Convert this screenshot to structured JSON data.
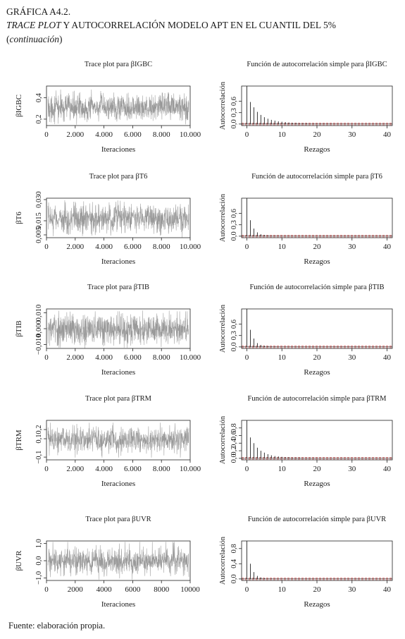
{
  "header": {
    "line1": "GRÁFICA A4.2.",
    "line2_italic": "TRACE PLOT",
    "line2_rest": " Y AUTOCORRELACIÓN MODELO APT EN EL CUANTIL DEL 5%",
    "line3_open": "(",
    "line3_italic": "continuación",
    "line3_close": ")"
  },
  "source": "Fuente: elaboración propia.",
  "colors": {
    "trace": "#9a9a9a",
    "bars": "#222222",
    "conf_band": "#d04040",
    "zero_line": "#1a1a1a"
  },
  "chart_data": [
    {
      "type": "line",
      "title": "Trace plot para βIGBC",
      "xlabel": "Iteraciones",
      "ylabel": "βIGBC",
      "x_ticks": [
        0,
        2000,
        4000,
        6000,
        8000,
        10000
      ],
      "x_tick_labels": [
        "0",
        "2.000",
        "4.000",
        "6.000",
        "8.000",
        "10.000"
      ],
      "y_ticks": [
        0.2,
        0.4
      ],
      "y_tick_labels": [
        "0,2",
        "0,4"
      ],
      "xlim": [
        0,
        10000
      ],
      "ylim": [
        0.14,
        0.51
      ],
      "series": [
        {
          "center": 0.31,
          "spread": 0.09,
          "max_excursion": 0.14
        }
      ]
    },
    {
      "type": "bar",
      "title": "Función de autocorrelación simple para βIGBC",
      "xlabel": "Rezagos",
      "ylabel": "Autocorrelación",
      "x_ticks": [
        0,
        10,
        20,
        30,
        40
      ],
      "y_ticks": [
        0.0,
        0.3,
        0.6
      ],
      "y_tick_labels": [
        "0,0",
        "0,3",
        "0,6"
      ],
      "xlim": [
        -1.5,
        41.5
      ],
      "ylim": [
        -0.04,
        1.0
      ],
      "values": [
        1.0,
        0.58,
        0.44,
        0.32,
        0.24,
        0.18,
        0.14,
        0.11,
        0.09,
        0.07,
        0.06,
        0.05,
        0.04,
        0.03,
        0.03,
        0.02,
        0.02,
        0.02,
        0.01,
        0.01,
        0.01,
        0.01,
        0.01,
        0.01,
        0.01,
        0.0,
        0.0,
        0.0,
        0.0,
        0.0,
        0.0,
        0.0,
        0.0,
        0.0,
        0.0,
        0.0,
        0.0,
        0.0,
        0.0,
        0.0,
        0.0
      ],
      "conf_band": 0.02
    },
    {
      "type": "line",
      "title": "Trace plot para βT6",
      "xlabel": "Iteraciones",
      "ylabel": "βT6",
      "x_ticks": [
        0,
        2000,
        4000,
        6000,
        8000,
        10000
      ],
      "x_tick_labels": [
        "0",
        "2.000",
        "4.000",
        "6.000",
        "8.000",
        "10.000"
      ],
      "y_ticks": [
        0.005,
        0.015,
        0.03
      ],
      "y_tick_labels": [
        "0,005",
        "0,015",
        "0,030"
      ],
      "xlim": [
        0,
        10000
      ],
      "ylim": [
        0.003,
        0.031
      ],
      "series": [
        {
          "center": 0.0165,
          "spread": 0.0075,
          "max_excursion": 0.012
        }
      ]
    },
    {
      "type": "bar",
      "title": "Función de autocorrelación simple para βT6",
      "xlabel": "Rezagos",
      "ylabel": "Autocorrelación",
      "x_ticks": [
        0,
        10,
        20,
        30,
        40
      ],
      "y_ticks": [
        0.0,
        0.3,
        0.6
      ],
      "y_tick_labels": [
        "0,0",
        "0,3",
        "0,6"
      ],
      "xlim": [
        -1.5,
        41.5
      ],
      "ylim": [
        -0.04,
        1.0
      ],
      "values": [
        1.0,
        0.42,
        0.2,
        0.1,
        0.05,
        0.03,
        0.02,
        0.01,
        0.01,
        0.01,
        0.0,
        0.0,
        0.0,
        0.0,
        0.0,
        0.0,
        0.0,
        0.0,
        0.0,
        0.0,
        0.0,
        0.0,
        0.0,
        0.0,
        0.0,
        0.0,
        0.0,
        0.0,
        0.0,
        0.0,
        0.0,
        0.0,
        0.0,
        0.0,
        0.0,
        0.0,
        0.0,
        0.0,
        0.0,
        0.0,
        0.0
      ],
      "conf_band": 0.02
    },
    {
      "type": "line",
      "title": "Trace plot para βTIB",
      "xlabel": "Iteraciones",
      "ylabel": "βTIB",
      "x_ticks": [
        0,
        2000,
        4000,
        6000,
        8000,
        10000
      ],
      "x_tick_labels": [
        "0",
        "2.000",
        "4.000",
        "6.000",
        "8.000",
        "10.000"
      ],
      "y_ticks": [
        -0.01,
        0.0,
        0.01
      ],
      "y_tick_labels": [
        "−0,010",
        "0,000",
        "0,010"
      ],
      "xlim": [
        0,
        10000
      ],
      "ylim": [
        -0.0125,
        0.0125
      ],
      "series": [
        {
          "center": -0.0005,
          "spread": 0.0068,
          "max_excursion": 0.0115
        }
      ]
    },
    {
      "type": "bar",
      "title": "Función de autocorrelación simple para βTIB",
      "xlabel": "Rezagos",
      "ylabel": "Autocorrelación",
      "x_ticks": [
        0,
        10,
        20,
        30,
        40
      ],
      "y_ticks": [
        0.0,
        0.3,
        0.6
      ],
      "y_tick_labels": [
        "0,0",
        "0,3",
        "0,6"
      ],
      "xlim": [
        -1.5,
        41.5
      ],
      "ylim": [
        -0.04,
        1.0
      ],
      "values": [
        1.0,
        0.45,
        0.22,
        0.1,
        0.05,
        0.03,
        0.02,
        0.01,
        0.01,
        0.0,
        0.0,
        0.0,
        0.0,
        0.0,
        0.0,
        0.0,
        0.0,
        0.0,
        0.0,
        0.0,
        0.0,
        0.0,
        0.0,
        0.0,
        0.0,
        0.0,
        0.0,
        0.0,
        0.0,
        0.0,
        0.0,
        0.0,
        0.0,
        0.0,
        0.0,
        0.0,
        0.0,
        0.0,
        0.0,
        0.0,
        0.0
      ],
      "conf_band": 0.02
    },
    {
      "type": "line",
      "title": "Trace plot para βTRM",
      "xlabel": "Iteraciones",
      "ylabel": "βTRM",
      "x_ticks": [
        0,
        2000,
        4000,
        6000,
        8000,
        10000
      ],
      "x_tick_labels": [
        "0",
        "2.000",
        "4.000",
        "6.000",
        "8.000",
        "10.000"
      ],
      "y_ticks": [
        -0.1,
        0.1,
        0.2
      ],
      "y_tick_labels": [
        "−0,1",
        "0,1",
        "0,2"
      ],
      "xlim": [
        0,
        10000
      ],
      "ylim": [
        -0.13,
        0.3
      ],
      "series": [
        {
          "center": 0.085,
          "spread": 0.1,
          "max_excursion": 0.19
        }
      ]
    },
    {
      "type": "bar",
      "title": "Función de autocorrelación simple para βTRM",
      "xlabel": "Rezagos",
      "ylabel": "Autocorrelación",
      "x_ticks": [
        0,
        10,
        20,
        30,
        40
      ],
      "y_ticks": [
        0.0,
        0.2,
        0.4,
        0.6,
        0.8
      ],
      "y_tick_labels": [
        "0,0",
        "0,2",
        "0,4",
        "0,6",
        "0,8"
      ],
      "xlim": [
        -1.5,
        41.5
      ],
      "ylim": [
        -0.04,
        1.0
      ],
      "values": [
        1.0,
        0.55,
        0.4,
        0.28,
        0.2,
        0.15,
        0.11,
        0.08,
        0.06,
        0.05,
        0.04,
        0.03,
        0.03,
        0.02,
        0.02,
        0.02,
        0.01,
        0.01,
        0.01,
        0.01,
        0.01,
        0.0,
        0.0,
        0.0,
        0.0,
        0.0,
        0.0,
        0.0,
        0.0,
        0.0,
        0.0,
        0.0,
        0.0,
        0.0,
        0.0,
        0.0,
        0.0,
        0.0,
        0.0,
        0.0,
        0.0
      ],
      "conf_band": 0.02
    },
    {
      "type": "line",
      "title": "Trace plot para βUVR",
      "xlabel": "Iteraciones",
      "ylabel": "βUVR",
      "x_ticks": [
        0,
        2000,
        4000,
        6000,
        8000,
        10000
      ],
      "x_tick_labels": [
        "0",
        "2000",
        "4000",
        "6000",
        "8000",
        "10000"
      ],
      "y_ticks": [
        -1.0,
        0.0,
        1.0
      ],
      "y_tick_labels": [
        "−1,0",
        "0,0",
        "1,0"
      ],
      "xlim": [
        0,
        10000
      ],
      "ylim": [
        -1.15,
        1.15
      ],
      "series": [
        {
          "center": 0.0,
          "spread": 0.55,
          "max_excursion": 1.1
        }
      ]
    },
    {
      "type": "bar",
      "title": "Función de autocorrelación simple para βUVR",
      "xlabel": "Rezagos",
      "ylabel": "Autocorrelación",
      "x_ticks": [
        0,
        10,
        20,
        30,
        40
      ],
      "y_ticks": [
        0.0,
        0.4,
        0.8
      ],
      "y_tick_labels": [
        "0,0",
        "0,4",
        "0,8"
      ],
      "xlim": [
        -1.5,
        41.5
      ],
      "ylim": [
        -0.04,
        1.0
      ],
      "values": [
        1.0,
        0.4,
        0.18,
        0.08,
        0.04,
        0.02,
        0.01,
        0.01,
        0.0,
        0.0,
        0.0,
        0.0,
        0.0,
        0.0,
        0.0,
        0.0,
        0.0,
        0.0,
        0.0,
        0.0,
        0.0,
        0.0,
        0.0,
        0.0,
        0.0,
        0.0,
        0.0,
        0.0,
        0.0,
        0.0,
        0.0,
        0.0,
        0.0,
        0.0,
        0.0,
        0.0,
        0.0,
        0.0,
        0.0,
        0.0,
        0.0
      ],
      "conf_band": 0.02
    }
  ]
}
